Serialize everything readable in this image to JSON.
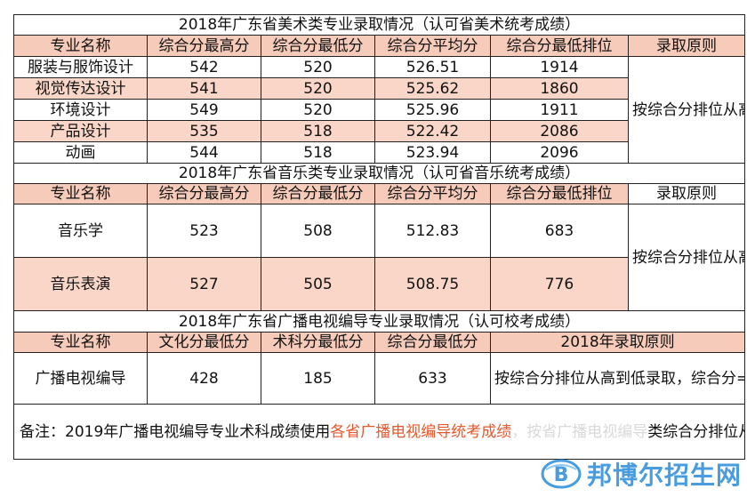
{
  "art": {
    "title": "2018年广东省美术类专业录取情况（认可省美术统考成绩）",
    "headers": [
      "专业名称",
      "综合分最高分",
      "综合分最低分",
      "综合分平均分",
      "综合分最低排位",
      "录取原则"
    ],
    "rows": [
      [
        "服装与服饰设计",
        "542",
        "520",
        "526.51",
        "1914"
      ],
      [
        "视觉传达设计",
        "541",
        "520",
        "525.62",
        "1860"
      ],
      [
        "环境设计",
        "549",
        "520",
        "525.96",
        "1911"
      ],
      [
        "产品设计",
        "535",
        "518",
        "522.42",
        "2086"
      ],
      [
        "动画",
        "544",
        "518",
        "523.94",
        "2096"
      ]
    ],
    "principle": "按综合分排位从高到低录取，综合分为广东省美术类综合分"
  },
  "music": {
    "title": "2018年广东省音乐类专业录取情况（认可省音乐统考成绩）",
    "headers": [
      "专业名称",
      "综合分最高分",
      "综合分最低分",
      "综合分平均分",
      "综合分最低排位",
      "录取原则"
    ],
    "rows": [
      [
        "音乐学",
        "523",
        "508",
        "512.83",
        "683"
      ],
      [
        "音乐表演",
        "527",
        "505",
        "508.75",
        "776"
      ]
    ],
    "principle": "按综合分排位从高到低录取，综合分为广东省音乐类综合分"
  },
  "broadcast": {
    "title": "2018年广东省广播电视编导专业录取情况（认可校考成绩）",
    "headers": [
      "专业名称",
      "文化分最低分",
      "术科分最低分",
      "综合分最低分",
      "2018年录取原则"
    ],
    "row": [
      "广播电视编导",
      "428",
      "185",
      "633"
    ],
    "principle": "按综合分排位从高到低录取，综合分=高考文化分+校考术科分"
  },
  "footnote": {
    "prefix": "备注：2019年广播电视编导专业术科成绩使用",
    "highlight": "各省广播电视编导统考成绩",
    "faded": "，按省广播电视编导",
    "suffix": "类综合分排位从高到低录取。"
  },
  "watermark": {
    "text": "邦博尔招生网",
    "icon": "b-circle-logo-icon",
    "color": "#2a8bd8"
  }
}
